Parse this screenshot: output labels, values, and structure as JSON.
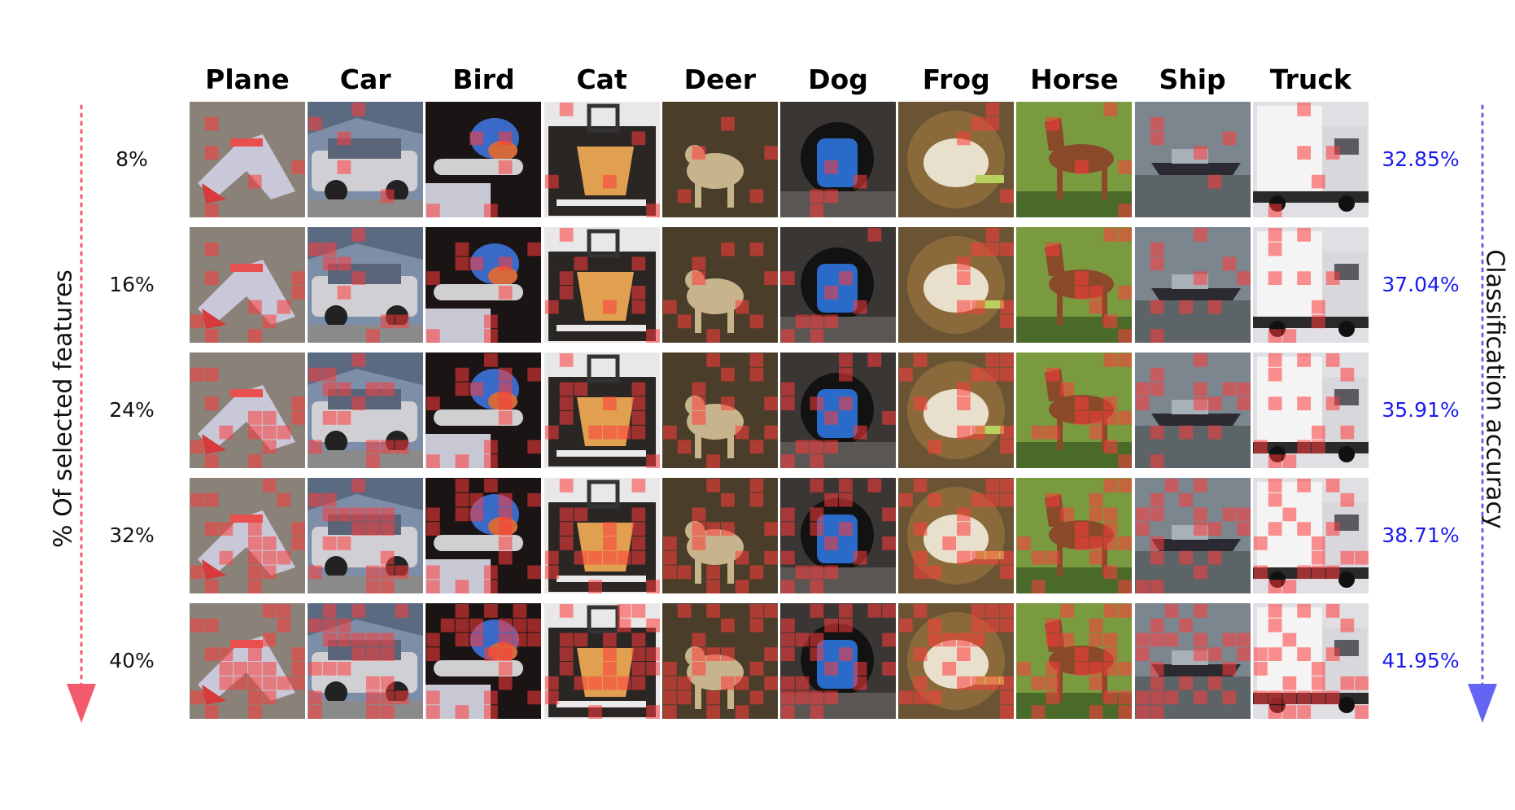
{
  "columns": [
    "Plane",
    "Car",
    "Bird",
    "Cat",
    "Deer",
    "Dog",
    "Frog",
    "Horse",
    "Ship",
    "Truck"
  ],
  "rows": [
    {
      "percent": "8%",
      "accuracy": "32.85%",
      "density": 0.08
    },
    {
      "percent": "16%",
      "accuracy": "37.04%",
      "density": 0.16
    },
    {
      "percent": "24%",
      "accuracy": "35.91%",
      "density": 0.24
    },
    {
      "percent": "32%",
      "accuracy": "38.71%",
      "density": 0.32
    },
    {
      "percent": "40%",
      "accuracy": "41.95%",
      "density": 0.4
    }
  ],
  "left_axis_title": "% Of selected features",
  "right_axis_title": "Classification accuracy",
  "colors": {
    "left_arrow": "#f35a6e",
    "right_arrow": "#6464f5",
    "accuracy_text": "#1a1aee",
    "mask_overlay": "#ff3b3b"
  },
  "tile_palettes": [
    {
      "bg": "#8a8279",
      "fg": "#c8c8d8",
      "accent": "#d63a3a",
      "shape": "plane"
    },
    {
      "bg": "#7d8fa8",
      "fg": "#d0d0d4",
      "accent": "#5a6478",
      "shape": "car"
    },
    {
      "bg": "#1a1414",
      "fg": "#3a6ac8",
      "accent": "#d0d0d0",
      "shape": "bird"
    },
    {
      "bg": "#2a2624",
      "fg": "#e0a050",
      "accent": "#eaeaea",
      "shape": "cat"
    },
    {
      "bg": "#4a3e2a",
      "fg": "#c8b48c",
      "accent": "#6a5a3a",
      "shape": "deer"
    },
    {
      "bg": "#3a3634",
      "fg": "#2a6ac8",
      "accent": "#121212",
      "shape": "dog"
    },
    {
      "bg": "#6a5434",
      "fg": "#e8e0cc",
      "accent": "#8a6a3a",
      "shape": "frog"
    },
    {
      "bg": "#6a8a3a",
      "fg": "#8a4a2a",
      "accent": "#4a6a2a",
      "shape": "horse"
    },
    {
      "bg": "#7c868e",
      "fg": "#2a2a30",
      "accent": "#a8b0b8",
      "shape": "ship"
    },
    {
      "bg": "#e0e0e4",
      "fg": "#f4f4f4",
      "accent": "#2a2a2a",
      "shape": "truck"
    }
  ]
}
